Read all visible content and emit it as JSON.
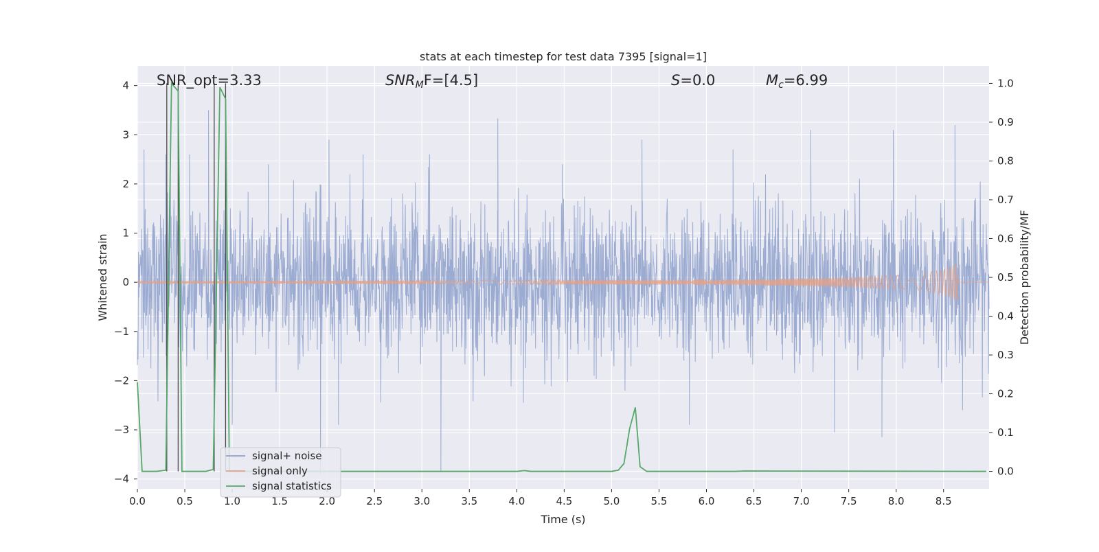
{
  "chart_data": {
    "type": "line",
    "title": "stats at each timestep for test data 7395 [signal=1]",
    "xlabel": "Time (s)",
    "ylabel_left": "Whitened strain",
    "ylabel_right": "Detection probability/MF",
    "xlim": [
      0.0,
      8.98
    ],
    "ylim_left": [
      -4.2,
      4.4
    ],
    "ylim_right": [
      -0.045,
      1.045
    ],
    "x_ticks": [
      "0.0",
      "0.5",
      "1.0",
      "1.5",
      "2.0",
      "2.5",
      "3.0",
      "3.5",
      "4.0",
      "4.5",
      "5.0",
      "5.5",
      "6.0",
      "6.5",
      "7.0",
      "7.5",
      "8.0",
      "8.5"
    ],
    "y_ticks_left": [
      "−4",
      "−3",
      "−2",
      "−1",
      "0",
      "1",
      "2",
      "3",
      "4"
    ],
    "y_ticks_right": [
      "0.0",
      "0.1",
      "0.2",
      "0.3",
      "0.4",
      "0.5",
      "0.6",
      "0.7",
      "0.8",
      "0.9",
      "1.0"
    ],
    "grid": true,
    "legend_position": "lower-left",
    "annotations": {
      "snr_opt": "SNR_opt=3.33",
      "snr_mf_main": "SNR",
      "snr_mf_sub": "M",
      "snr_mf_tail": "F=[4.5]",
      "s_main": "S",
      "s_tail": "=0.0",
      "mc_main": "M",
      "mc_sub": "c",
      "mc_tail": "=6.99"
    },
    "series": [
      {
        "name": "signal+ noise",
        "axis": "left",
        "color": "#8da0cb",
        "kind": "noise",
        "std": 0.78,
        "notable_peaks": [
          [
            0.07,
            2.7
          ],
          [
            0.3,
            2.6
          ],
          [
            0.55,
            2.6
          ],
          [
            0.75,
            3.5
          ],
          [
            1.38,
            2.4
          ],
          [
            2.02,
            2.9
          ],
          [
            2.38,
            2.6
          ],
          [
            3.08,
            2.6
          ],
          [
            3.8,
            3.33
          ],
          [
            4.48,
            2.4
          ],
          [
            5.32,
            2.9
          ],
          [
            6.28,
            2.7
          ],
          [
            7.1,
            3.1
          ],
          [
            7.97,
            3.1
          ],
          [
            8.62,
            3.2
          ],
          [
            0.46,
            -2.5
          ],
          [
            1.0,
            -2.9
          ],
          [
            1.93,
            -3.9
          ],
          [
            2.12,
            -2.9
          ],
          [
            3.2,
            -3.85
          ],
          [
            4.07,
            -2.45
          ],
          [
            5.82,
            -2.9
          ],
          [
            7.35,
            -3.05
          ],
          [
            7.85,
            -3.15
          ],
          [
            8.7,
            -2.6
          ]
        ]
      },
      {
        "name": "signal only",
        "axis": "left",
        "color": "#e5a085",
        "kind": "chirp",
        "envelope": [
          [
            0.0,
            0.02
          ],
          [
            2.0,
            0.03
          ],
          [
            4.0,
            0.04
          ],
          [
            5.5,
            0.05
          ],
          [
            6.5,
            0.06
          ],
          [
            7.5,
            0.1
          ],
          [
            8.0,
            0.14
          ],
          [
            8.3,
            0.19
          ],
          [
            8.5,
            0.26
          ],
          [
            8.6,
            0.34
          ],
          [
            8.64,
            0.4
          ],
          [
            8.66,
            0.0
          ],
          [
            8.98,
            0.0
          ]
        ]
      },
      {
        "name": "signal statistics",
        "axis": "right",
        "color": "#55a868",
        "kind": "line",
        "points": [
          [
            0.0,
            0.23
          ],
          [
            0.05,
            0.0
          ],
          [
            0.12,
            0.0
          ],
          [
            0.2,
            0.0
          ],
          [
            0.3,
            0.003
          ],
          [
            0.36,
            1.0
          ],
          [
            0.43,
            0.98
          ],
          [
            0.47,
            0.0
          ],
          [
            0.55,
            0.0
          ],
          [
            0.72,
            0.0
          ],
          [
            0.8,
            0.005
          ],
          [
            0.87,
            0.99
          ],
          [
            0.93,
            0.96
          ],
          [
            0.97,
            0.0
          ],
          [
            1.2,
            0.0
          ],
          [
            4.0,
            0.0
          ],
          [
            4.08,
            0.002
          ],
          [
            4.15,
            0.0
          ],
          [
            5.0,
            0.0
          ],
          [
            5.07,
            0.003
          ],
          [
            5.13,
            0.02
          ],
          [
            5.19,
            0.11
          ],
          [
            5.25,
            0.165
          ],
          [
            5.3,
            0.012
          ],
          [
            5.37,
            0.0
          ],
          [
            6.3,
            0.0
          ],
          [
            6.4,
            0.001
          ],
          [
            8.95,
            0.0
          ]
        ]
      }
    ],
    "vertical_lines": [
      0.31,
      0.43,
      0.81,
      0.93
    ]
  }
}
